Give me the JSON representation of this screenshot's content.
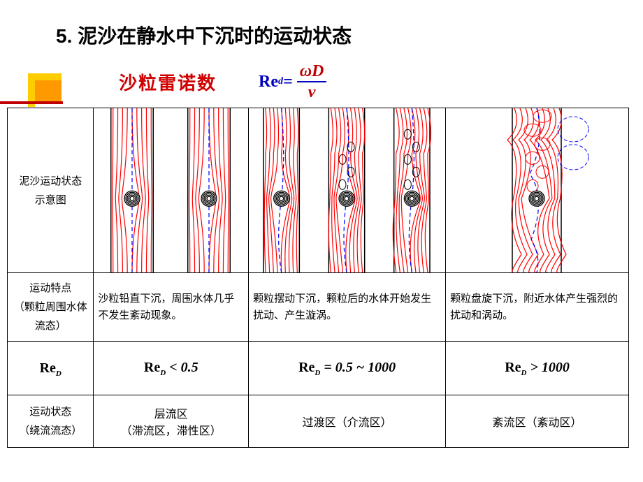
{
  "heading": "5.  泥沙在静水中下沉时的运动状态",
  "subheading": "沙粒雷诺数",
  "formula": {
    "prefix": "Re",
    "sub": "d",
    "eq": " = ",
    "num": "ωD",
    "den": "ν"
  },
  "rows": {
    "diagram_label": "泥沙运动状态\n示意图",
    "feature_label": "运动特点\n（颗粒周围水体流态）",
    "re_label_prefix": "Re",
    "re_label_sub": "D",
    "state_label": "运动状态\n（绕流流态）"
  },
  "cols": [
    {
      "feature": "沙粒铅直下沉，周围水体几乎不发生紊动现象。",
      "re_text": " < 0.5",
      "state": "层流区\n（滞流区，滞性区）",
      "diagram": {
        "type": "laminar",
        "count": 2
      }
    },
    {
      "feature": "颗粒摆动下沉，颗粒后的水体开始发生扰动、产生漩涡。",
      "re_text": " = 0.5 ~ 1000",
      "state": "过渡区（介流区）",
      "diagram": {
        "type": "transition",
        "count": 3
      }
    },
    {
      "feature": "颗粒盘旋下沉，附近水体产生强烈的扰动和涡动。",
      "re_text": " > 1000",
      "state": "紊流区（紊动区）",
      "diagram": {
        "type": "turbulent",
        "count": 1
      }
    }
  ],
  "style": {
    "stream_color": "#ff0000",
    "centerline_color": "#0000ff",
    "particle_stroke": "#000000",
    "outline_color": "#000000",
    "stroke_width": 1.2
  }
}
